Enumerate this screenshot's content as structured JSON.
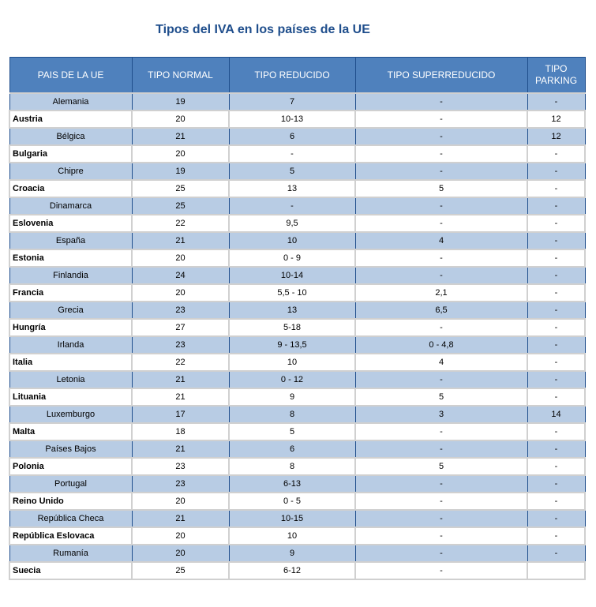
{
  "title": "Tipos del IVA en los países de la UE",
  "headers": [
    "PAIS DE LA UE",
    "TIPO NORMAL",
    "TIPO REDUCIDO",
    "TIPO SUPERREDUCIDO",
    "TIPO PARKING"
  ],
  "rows": [
    [
      "Alemania",
      "19",
      "7",
      "-",
      "-"
    ],
    [
      "Austria",
      "20",
      "10-13",
      "-",
      "12"
    ],
    [
      "Bélgica",
      "21",
      "6",
      "-",
      "12"
    ],
    [
      "Bulgaria",
      "20",
      "-",
      "-",
      "-"
    ],
    [
      "Chipre",
      "19",
      "5",
      "-",
      "-"
    ],
    [
      "Croacia",
      "25",
      "13",
      "5",
      "-"
    ],
    [
      "Dinamarca",
      "25",
      "-",
      "-",
      "-"
    ],
    [
      "Eslovenia",
      "22",
      "9,5",
      "-",
      "-"
    ],
    [
      "España",
      "21",
      "10",
      "4",
      "-"
    ],
    [
      "Estonia",
      "20",
      "0 - 9",
      "-",
      "-"
    ],
    [
      "Finlandia",
      "24",
      "10-14",
      "-",
      "-"
    ],
    [
      "Francia",
      "20",
      "5,5 - 10",
      "2,1",
      "-"
    ],
    [
      "Grecia",
      "23",
      "13",
      "6,5",
      "-"
    ],
    [
      "Hungría",
      "27",
      "5-18",
      "-",
      "-"
    ],
    [
      "Irlanda",
      "23",
      "9 - 13,5",
      "0 - 4,8",
      "-"
    ],
    [
      "Italia",
      "22",
      "10",
      "4",
      "-"
    ],
    [
      "Letonia",
      "21",
      "0 - 12",
      "-",
      "-"
    ],
    [
      "Lituania",
      "21",
      "9",
      "5",
      "-"
    ],
    [
      "Luxemburgo",
      "17",
      "8",
      "3",
      "14"
    ],
    [
      "Malta",
      "18",
      "5",
      "-",
      "-"
    ],
    [
      "Países Bajos",
      "21",
      "6",
      "-",
      "-"
    ],
    [
      "Polonia",
      "23",
      "8",
      "5",
      "-"
    ],
    [
      "Portugal",
      "23",
      "6-13",
      "-",
      "-"
    ],
    [
      "Reino Unido",
      "20",
      "0 - 5",
      "-",
      "-"
    ],
    [
      "República Checa",
      "21",
      "10-15",
      "-",
      "-"
    ],
    [
      "República Eslovaca",
      "20",
      "10",
      "-",
      "-"
    ],
    [
      "Rumanía",
      "20",
      "9",
      "-",
      "-"
    ],
    [
      "Suecia",
      "25",
      "6-12",
      "-",
      ""
    ]
  ]
}
